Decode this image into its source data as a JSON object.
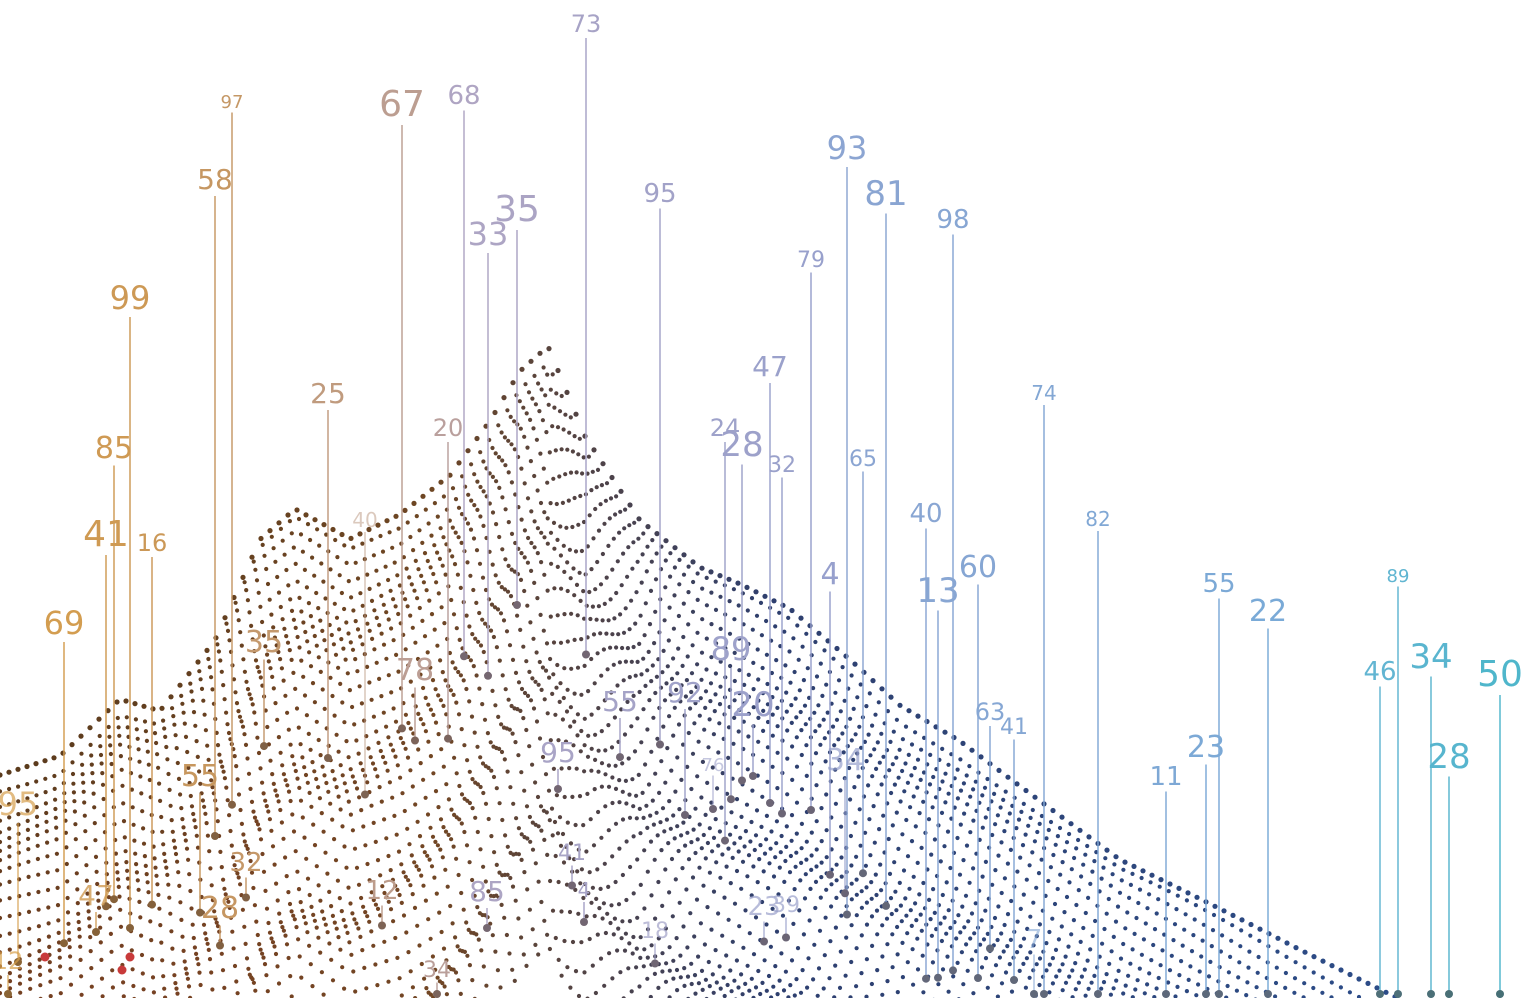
{
  "colors": {
    "warm_orange": "#d9a04a",
    "warm_brown": "#5a3a1c",
    "mid_mauve": "#9a93b8",
    "cool_navy": "#2e3f6e",
    "cool_blue": "#2b4f8e",
    "teal": "#49b6c8",
    "red_dot": "#c83a3a",
    "background": "#ffffff"
  },
  "labels": [
    {
      "text": "73"
    },
    {
      "text": "97"
    },
    {
      "text": "67"
    },
    {
      "text": "68"
    },
    {
      "text": "58"
    },
    {
      "text": "35"
    },
    {
      "text": "33"
    },
    {
      "text": "95"
    },
    {
      "text": "93"
    },
    {
      "text": "81"
    },
    {
      "text": "98"
    },
    {
      "text": "99"
    },
    {
      "text": "79"
    },
    {
      "text": "25"
    },
    {
      "text": "47"
    },
    {
      "text": "85"
    },
    {
      "text": "20"
    },
    {
      "text": "24"
    },
    {
      "text": "28"
    },
    {
      "text": "32"
    },
    {
      "text": "65"
    },
    {
      "text": "74"
    },
    {
      "text": "41"
    },
    {
      "text": "16"
    },
    {
      "text": "40"
    },
    {
      "text": "82"
    },
    {
      "text": "40"
    },
    {
      "text": "69"
    },
    {
      "text": "60"
    },
    {
      "text": "13"
    },
    {
      "text": "4"
    },
    {
      "text": "55"
    },
    {
      "text": "22"
    },
    {
      "text": "89"
    },
    {
      "text": "35"
    },
    {
      "text": "34"
    },
    {
      "text": "50"
    },
    {
      "text": "78"
    },
    {
      "text": "89"
    },
    {
      "text": "46"
    },
    {
      "text": "55"
    },
    {
      "text": "92"
    },
    {
      "text": "20"
    },
    {
      "text": "63"
    },
    {
      "text": "41"
    },
    {
      "text": "28"
    },
    {
      "text": "23"
    },
    {
      "text": "95"
    },
    {
      "text": "11"
    },
    {
      "text": "55"
    },
    {
      "text": "76"
    },
    {
      "text": "34"
    },
    {
      "text": "95"
    },
    {
      "text": "32"
    },
    {
      "text": "41"
    },
    {
      "text": "47"
    },
    {
      "text": "12"
    },
    {
      "text": "85"
    },
    {
      "text": "4"
    },
    {
      "text": "28"
    },
    {
      "text": "18"
    },
    {
      "text": "23"
    },
    {
      "text": "39"
    },
    {
      "text": "7"
    },
    {
      "text": "12"
    },
    {
      "text": "34"
    }
  ]
}
